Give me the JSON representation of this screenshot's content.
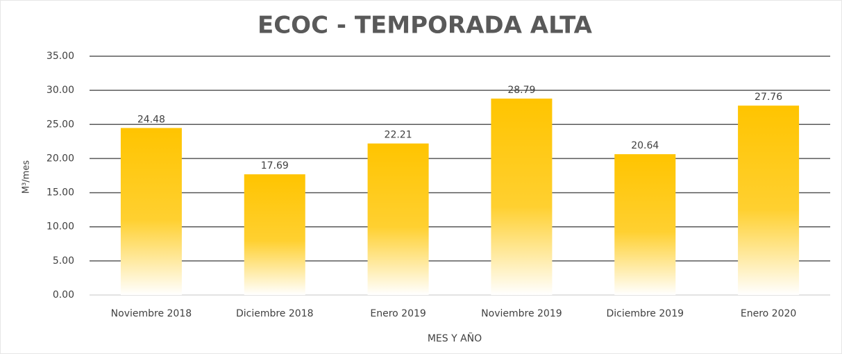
{
  "chart_data": {
    "type": "bar",
    "title": "ECOC - TEMPORADA ALTA",
    "x_label": "MES Y AÑO",
    "y_label": "M³/mes",
    "categories": [
      "Noviembre 2018",
      "Diciembre 2018",
      "Enero 2019",
      "Noviembre 2019",
      "Diciembre 2019",
      "Enero 2020"
    ],
    "values": [
      24.48,
      17.69,
      22.21,
      28.79,
      20.64,
      27.76
    ],
    "color": "#ffc000",
    "ylim": [
      0,
      35
    ],
    "yticks": [
      {
        "value": 0,
        "label": "0.00"
      },
      {
        "value": 5,
        "label": "5.00"
      },
      {
        "value": 10,
        "label": "10.00"
      },
      {
        "value": 15,
        "label": "15.00"
      },
      {
        "value": 20,
        "label": "20.00"
      },
      {
        "value": 25,
        "label": "25.00"
      },
      {
        "value": 30,
        "label": "30.00"
      },
      {
        "value": 35,
        "label": "35.00"
      }
    ],
    "grid": true
  }
}
